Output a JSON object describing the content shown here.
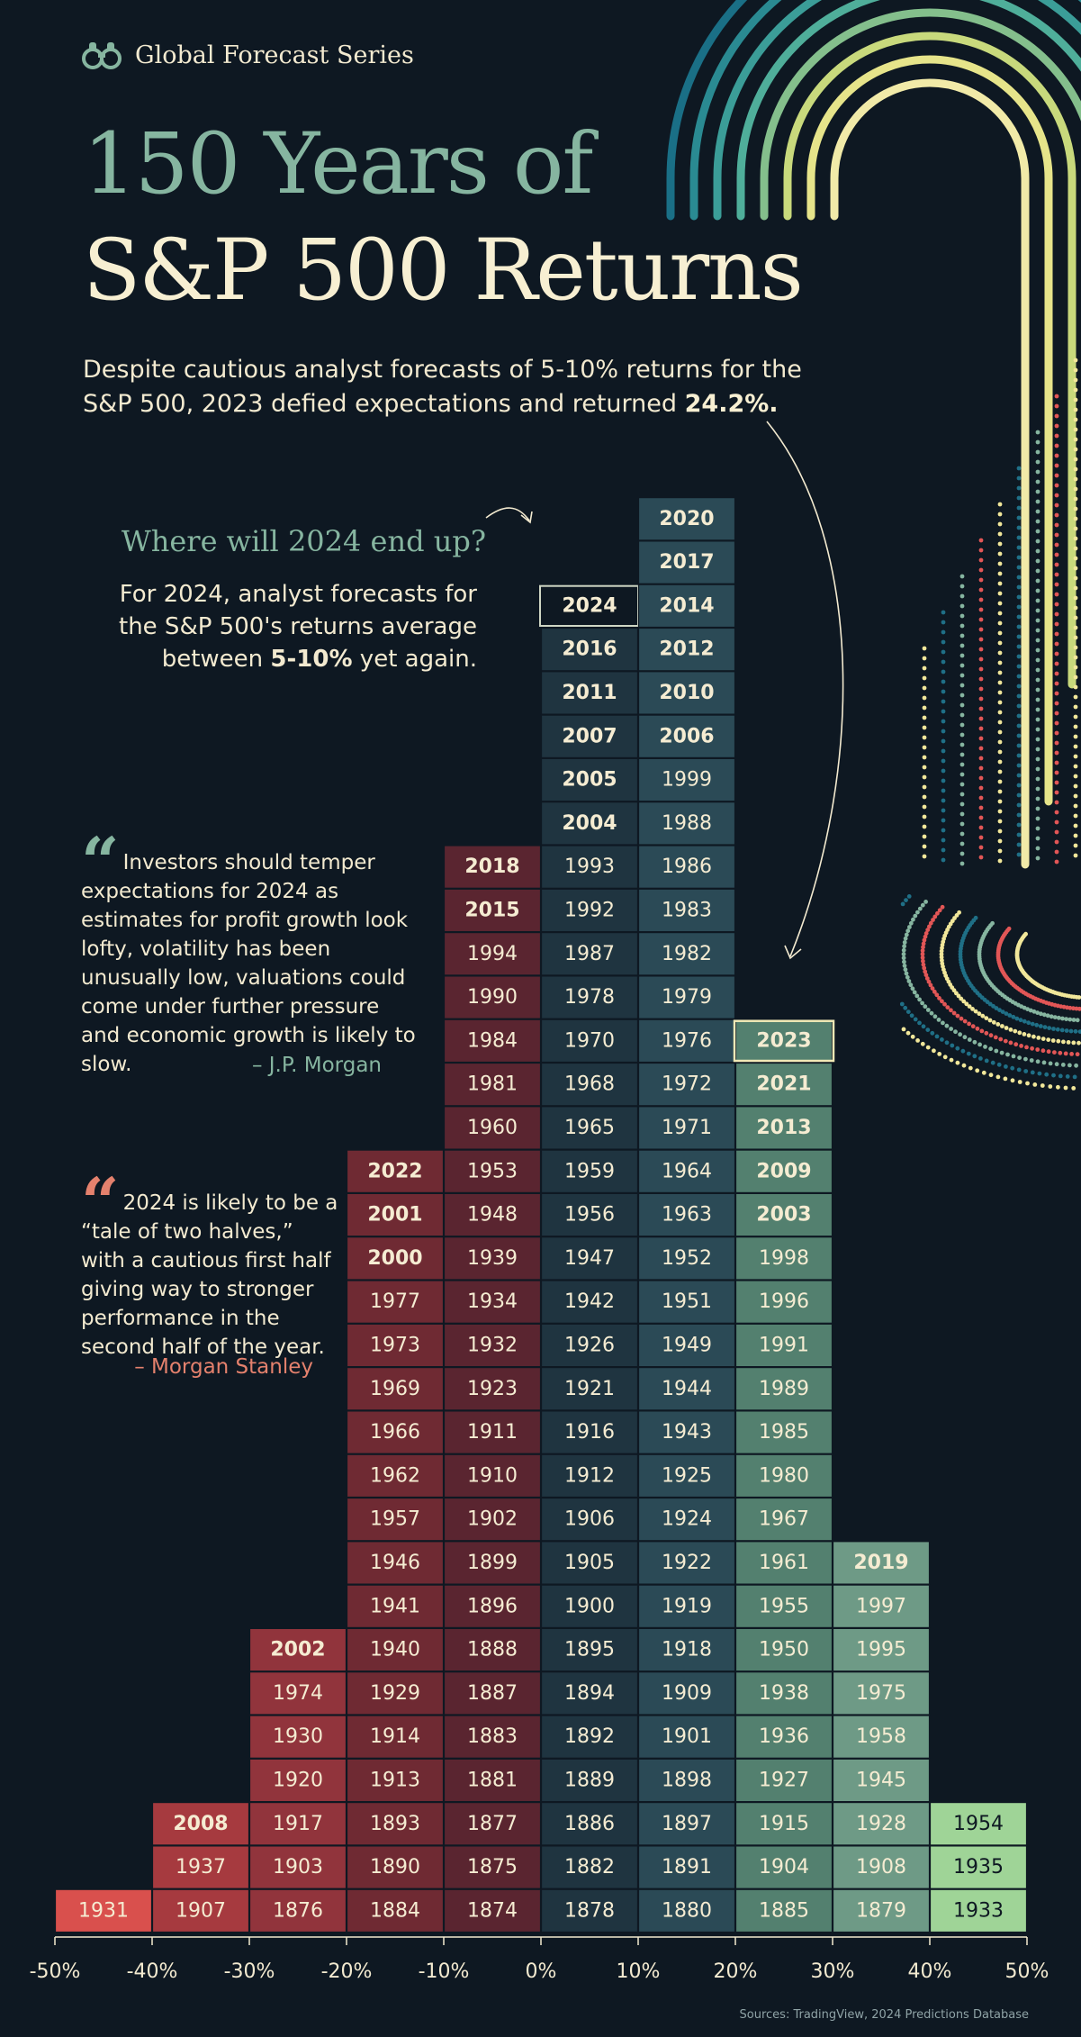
{
  "brand": {
    "name": "Global Forecast Series",
    "icon": "binoculars-icon"
  },
  "title": {
    "line1": "150 Years of",
    "line2": "S&P 500 Returns"
  },
  "intro": {
    "line1": "Despite cautious analyst forecasts of 5-10% returns for the",
    "line2_prefix": "S&P 500, 2023 defied expectations and returned ",
    "line2_bold": "24.2%."
  },
  "question": {
    "heading": "Where will 2024 end up?",
    "line1": "For 2024, analyst forecasts for",
    "line2": "the S&P 500's returns average",
    "line3_prefix": "between ",
    "line3_bold": "5-10%",
    "line3_suffix": " yet again."
  },
  "quotes": [
    {
      "text": "Investors should temper expectations for 2024 as estimates for profit growth look lofty, volatility has been unusually low, valuations could come under further pressure and economic growth is likely to slow.",
      "attribution": "– J.P. Morgan",
      "color": "#86b5a0"
    },
    {
      "text": "2024 is likely to be a “tale of two halves,” with a cautious first half giving way to stronger performance in the second half of the year.",
      "attribution": "– Morgan Stanley",
      "color": "#e4816d"
    }
  ],
  "sources": "Sources: TradingView, 2024 Predictions Database",
  "colors": {
    "background": "#0e1822",
    "bins": [
      "#d9504d",
      "#a63a3f",
      "#91343c",
      "#6f2a33",
      "#5a2530",
      "#1f3440",
      "#2b4a56",
      "#53806f",
      "#6e9a86",
      "#9fd497"
    ]
  },
  "chart_data": {
    "type": "histogram",
    "x_axis": {
      "label": "",
      "ticks": [
        "-50%",
        "-40%",
        "-30%",
        "-20%",
        "-10%",
        "0%",
        "10%",
        "20%",
        "30%",
        "40%",
        "50%"
      ],
      "range": [
        -50,
        50
      ]
    },
    "bins": [
      {
        "range": "-50% to -40%",
        "years": [
          "1931"
        ],
        "bold": []
      },
      {
        "range": "-40% to -30%",
        "years": [
          "1907",
          "1937",
          "2008"
        ],
        "bold": [
          "2008"
        ]
      },
      {
        "range": "-30% to -20%",
        "years": [
          "1876",
          "1903",
          "1917",
          "1920",
          "1930",
          "1974",
          "2002"
        ],
        "bold": [
          "2002"
        ]
      },
      {
        "range": "-20% to -10%",
        "years": [
          "1884",
          "1890",
          "1893",
          "1913",
          "1914",
          "1929",
          "1940",
          "1941",
          "1946",
          "1957",
          "1962",
          "1966",
          "1969",
          "1973",
          "1977",
          "2000",
          "2001",
          "2022"
        ],
        "bold": [
          "2000",
          "2001",
          "2022"
        ]
      },
      {
        "range": "-10% to 0%",
        "years": [
          "1874",
          "1875",
          "1877",
          "1881",
          "1883",
          "1887",
          "1888",
          "1896",
          "1899",
          "1902",
          "1910",
          "1911",
          "1923",
          "1932",
          "1934",
          "1939",
          "1948",
          "1953",
          "1960",
          "1981",
          "1984",
          "1990",
          "1994",
          "2015",
          "2018"
        ],
        "bold": [
          "2015",
          "2018"
        ]
      },
      {
        "range": "0% to 10%",
        "years": [
          "1878",
          "1882",
          "1886",
          "1889",
          "1892",
          "1894",
          "1895",
          "1900",
          "1905",
          "1906",
          "1912",
          "1916",
          "1921",
          "1926",
          "1942",
          "1947",
          "1956",
          "1959",
          "1965",
          "1968",
          "1970",
          "1978",
          "1987",
          "1992",
          "1993",
          "2004",
          "2005",
          "2007",
          "2011",
          "2016",
          "2024"
        ],
        "bold": [
          "2004",
          "2005",
          "2007",
          "2011",
          "2016",
          "2024"
        ]
      },
      {
        "range": "10% to 20%",
        "years": [
          "1880",
          "1891",
          "1897",
          "1898",
          "1901",
          "1909",
          "1918",
          "1919",
          "1922",
          "1924",
          "1925",
          "1943",
          "1944",
          "1949",
          "1951",
          "1952",
          "1963",
          "1964",
          "1971",
          "1972",
          "1976",
          "1979",
          "1982",
          "1983",
          "1986",
          "1988",
          "1999",
          "2006",
          "2010",
          "2012",
          "2014",
          "2017",
          "2020"
        ],
        "bold": [
          "2006",
          "2010",
          "2012",
          "2014",
          "2017",
          "2020"
        ]
      },
      {
        "range": "20% to 30%",
        "years": [
          "1885",
          "1904",
          "1915",
          "1927",
          "1936",
          "1938",
          "1950",
          "1955",
          "1961",
          "1967",
          "1980",
          "1985",
          "1989",
          "1991",
          "1996",
          "1998",
          "2003",
          "2009",
          "2013",
          "2021",
          "2023"
        ],
        "bold": [
          "2003",
          "2009",
          "2013",
          "2021",
          "2023"
        ]
      },
      {
        "range": "30% to 40%",
        "years": [
          "1879",
          "1908",
          "1928",
          "1945",
          "1958",
          "1975",
          "1995",
          "1997",
          "2019"
        ],
        "bold": [
          "2019"
        ]
      },
      {
        "range": "40% to 50%",
        "years": [
          "1933",
          "1935",
          "1954"
        ],
        "bold": []
      }
    ],
    "highlighted": [
      {
        "year": "2024",
        "note": "forecast 5-10%"
      },
      {
        "year": "2023",
        "value": "24.2%"
      }
    ],
    "grid": false,
    "legend": "none"
  }
}
